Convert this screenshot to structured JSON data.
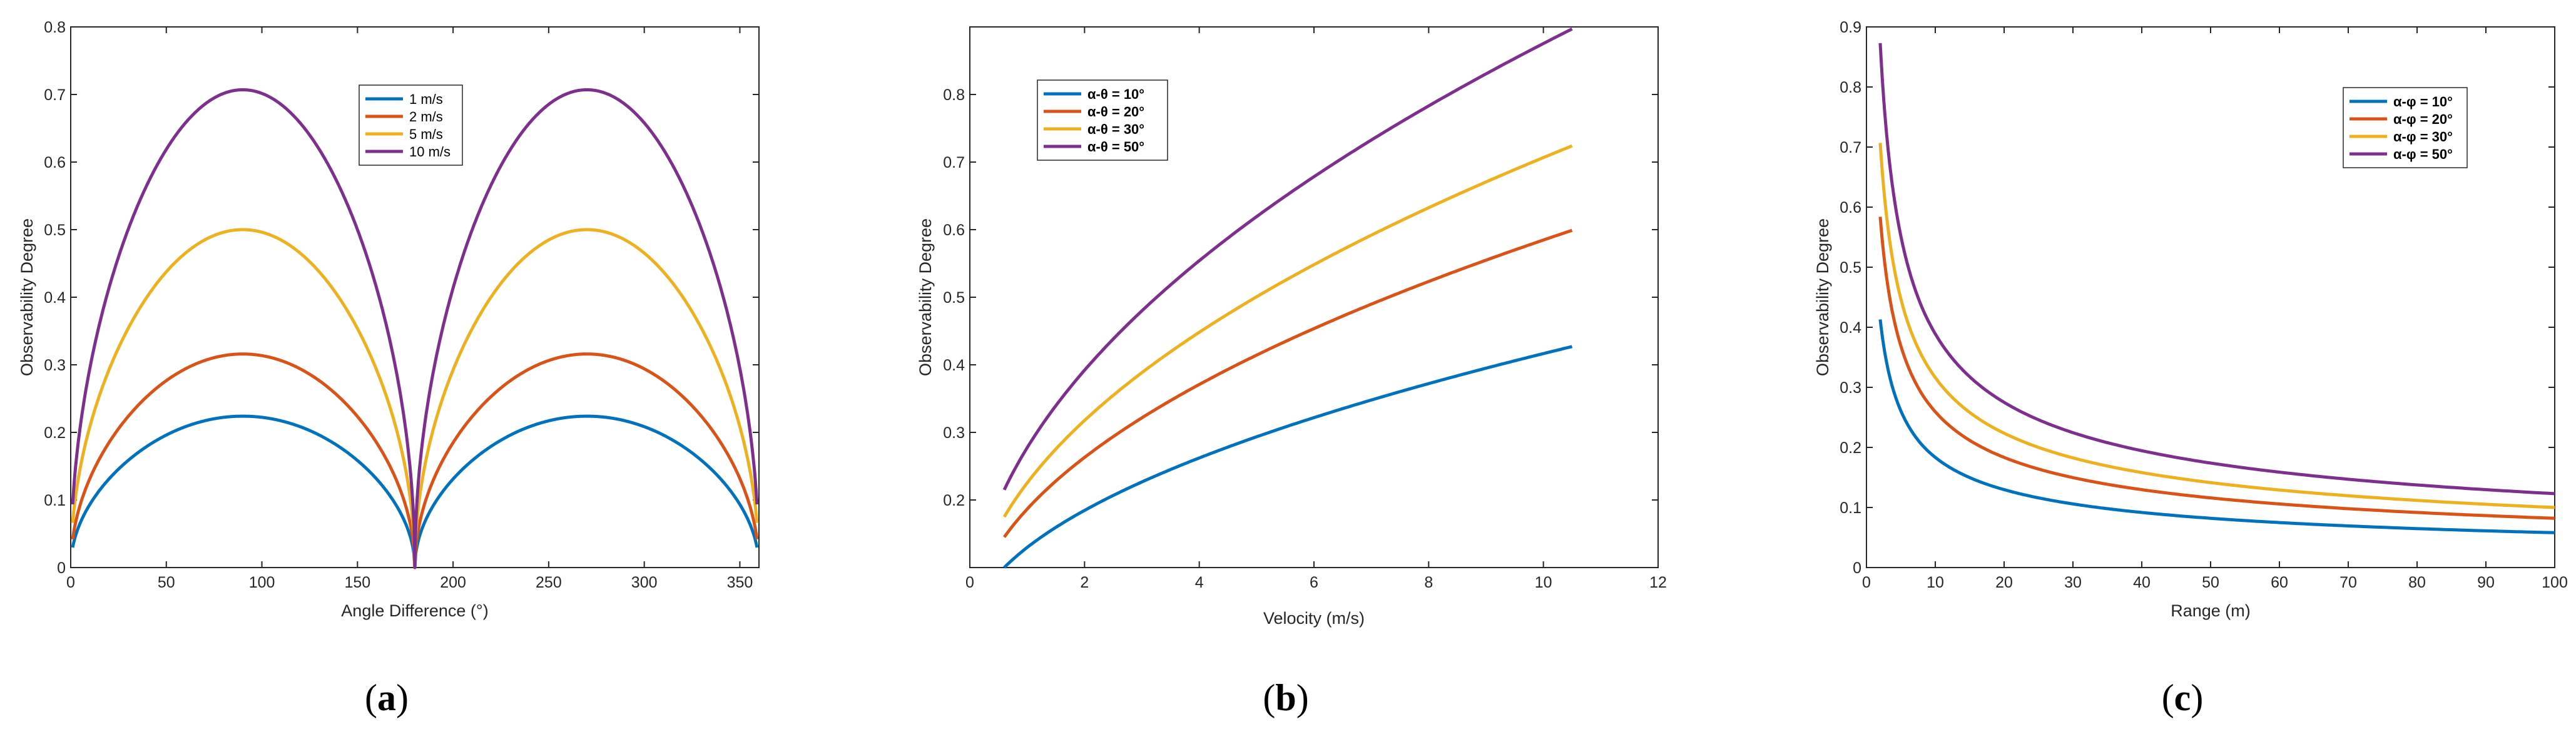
{
  "chart_data": [
    {
      "id": "a",
      "type": "line",
      "caption_letter": "a",
      "xlabel": "Angle Difference (°)",
      "ylabel": "Observability Degree",
      "xlim": [
        0,
        360
      ],
      "ylim": [
        0,
        0.8
      ],
      "xticks": [
        0,
        50,
        100,
        150,
        200,
        250,
        300,
        350
      ],
      "yticks": [
        0,
        0.1,
        0.2,
        0.3,
        0.4,
        0.5,
        0.6,
        0.7,
        0.8
      ],
      "xtick_labels": [
        "0",
        "50",
        "100",
        "150",
        "200",
        "250",
        "300",
        "350"
      ],
      "ytick_labels": [
        "0",
        "0.1",
        "0.2",
        "0.3",
        "0.4",
        "0.5",
        "0.6",
        "0.7",
        "0.8"
      ],
      "legend_position": "top-center",
      "legend_bold": false,
      "series": [
        {
          "name": "1 m/s",
          "color": "#0072BD",
          "peak": 0.224
        },
        {
          "name": "2 m/s",
          "color": "#D95319",
          "peak": 0.316
        },
        {
          "name": "5 m/s",
          "color": "#EDB120",
          "peak": 0.5
        },
        {
          "name": "10 m/s",
          "color": "#7E2F8E",
          "peak": 0.707
        }
      ]
    },
    {
      "id": "b",
      "type": "line",
      "caption_letter": "b",
      "xlabel": "Velocity (m/s)",
      "ylabel": "Observability Degree",
      "xlim": [
        0,
        12
      ],
      "ylim": [
        0.1,
        0.9
      ],
      "xticks": [
        0,
        2,
        4,
        6,
        8,
        10,
        12
      ],
      "yticks": [
        0.2,
        0.3,
        0.4,
        0.5,
        0.6,
        0.7,
        0.8
      ],
      "xtick_labels": [
        "0",
        "2",
        "4",
        "6",
        "8",
        "10",
        "12"
      ],
      "ytick_labels": [
        "0.2",
        "0.3",
        "0.4",
        "0.5",
        "0.6",
        "0.7",
        "0.8"
      ],
      "legend_position": "top-left",
      "legend_bold": true,
      "x_range": [
        0.6,
        10.5
      ],
      "series": [
        {
          "name": "α-θ = 10°",
          "color": "#0072BD",
          "y_start": 0.1,
          "y_end": 0.427
        },
        {
          "name": "α-θ = 20°",
          "color": "#D95319",
          "y_start": 0.145,
          "y_end": 0.599
        },
        {
          "name": "α-θ = 30°",
          "color": "#EDB120",
          "y_start": 0.175,
          "y_end": 0.724
        },
        {
          "name": "α-θ = 50°",
          "color": "#7E2F8E",
          "y_start": 0.215,
          "y_end": 0.897
        }
      ]
    },
    {
      "id": "c",
      "type": "line",
      "caption_letter": "c",
      "xlabel": "Range (m)",
      "ylabel": "Observability Degree",
      "xlim": [
        0,
        100
      ],
      "ylim": [
        0,
        0.9
      ],
      "xticks": [
        0,
        10,
        20,
        30,
        40,
        50,
        60,
        70,
        80,
        90,
        100
      ],
      "yticks": [
        0,
        0.1,
        0.2,
        0.3,
        0.4,
        0.5,
        0.6,
        0.7,
        0.8,
        0.9
      ],
      "xtick_labels": [
        "0",
        "10",
        "20",
        "30",
        "40",
        "50",
        "60",
        "70",
        "80",
        "90",
        "100"
      ],
      "ytick_labels": [
        "0",
        "0.1",
        "0.2",
        "0.3",
        "0.4",
        "0.5",
        "0.6",
        "0.7",
        "0.8",
        "0.9"
      ],
      "legend_position": "top-right",
      "legend_bold": true,
      "x_range": [
        2,
        100
      ],
      "series": [
        {
          "name": "α-φ = 10°",
          "color": "#0072BD",
          "y_start": 0.413,
          "y_end": 0.058
        },
        {
          "name": "α-φ = 20°",
          "color": "#D95319",
          "y_start": 0.584,
          "y_end": 0.082
        },
        {
          "name": "α-φ = 30°",
          "color": "#EDB120",
          "y_start": 0.707,
          "y_end": 0.1
        },
        {
          "name": "α-φ = 50°",
          "color": "#7E2F8E",
          "y_start": 0.873,
          "y_end": 0.123
        }
      ]
    }
  ]
}
